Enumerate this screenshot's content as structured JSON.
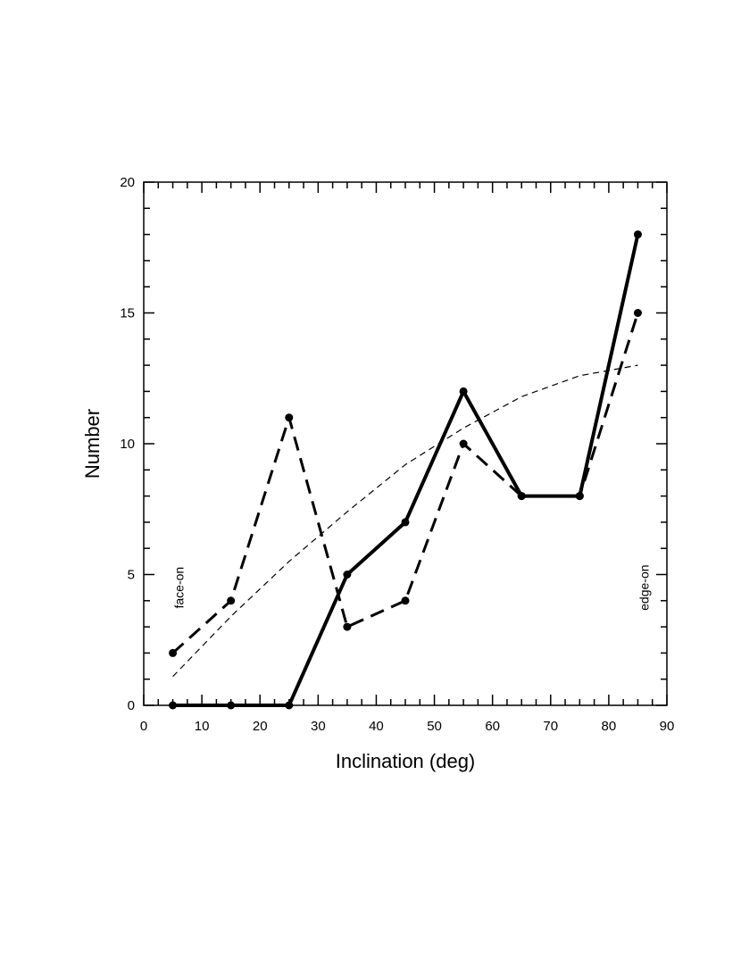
{
  "chart_data": {
    "type": "line",
    "title": "",
    "xlabel": "Inclination (deg)",
    "ylabel": "Number",
    "xlim": [
      0,
      90
    ],
    "ylim": [
      0,
      20
    ],
    "xticks": [
      "0",
      "10",
      "20",
      "30",
      "40",
      "50",
      "60",
      "70",
      "80",
      "90"
    ],
    "yticks": [
      "0",
      "5",
      "10",
      "15",
      "20"
    ],
    "grid": false,
    "legend": "none",
    "annotations": [
      {
        "text": "face-on",
        "x": 5,
        "y": 4.5
      },
      {
        "text": "edge-on",
        "x": 85,
        "y": 4.5
      }
    ],
    "series": [
      {
        "style": "solid-thick",
        "markers": true,
        "x": [
          5,
          15,
          25,
          35,
          45,
          55,
          65,
          75,
          85
        ],
        "y": [
          0,
          0,
          0,
          5,
          7,
          12,
          8,
          8,
          18
        ]
      },
      {
        "style": "dashed",
        "markers": true,
        "x": [
          5,
          15,
          25,
          35,
          45,
          55,
          65,
          75,
          85
        ],
        "y": [
          2,
          4,
          11,
          3,
          4,
          10,
          8,
          8,
          15
        ]
      },
      {
        "style": "dashed-thin",
        "markers": false,
        "x": [
          5,
          15,
          25,
          35,
          45,
          55,
          65,
          75,
          85
        ],
        "y": [
          1.1,
          3.4,
          5.5,
          7.4,
          9.2,
          10.6,
          11.8,
          12.6,
          13.0
        ]
      }
    ]
  }
}
